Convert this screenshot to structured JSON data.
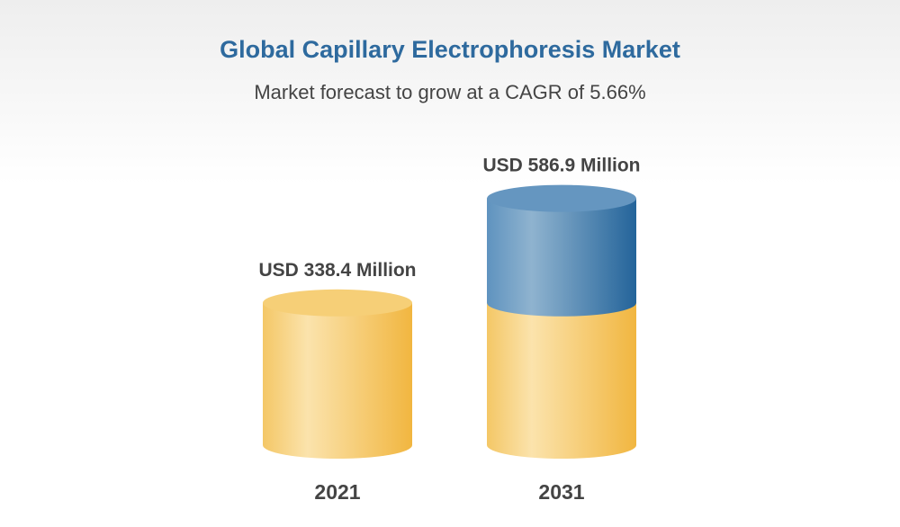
{
  "chart_data": {
    "type": "bar",
    "title": "Global Capillary Electrophoresis Market",
    "subtitle": "Market forecast to grow at a CAGR of 5.66%",
    "categories": [
      "2021",
      "2031"
    ],
    "values": [
      338.4,
      586.9
    ],
    "data_labels": [
      "USD 338.4 Million",
      "USD 586.9 Million"
    ],
    "unit": "USD Million",
    "style": "3d-cylinder",
    "grid": false,
    "colors": {
      "base": "#f3c25a",
      "growth": "#2e6a9e",
      "title": "#2e6a9e"
    }
  }
}
